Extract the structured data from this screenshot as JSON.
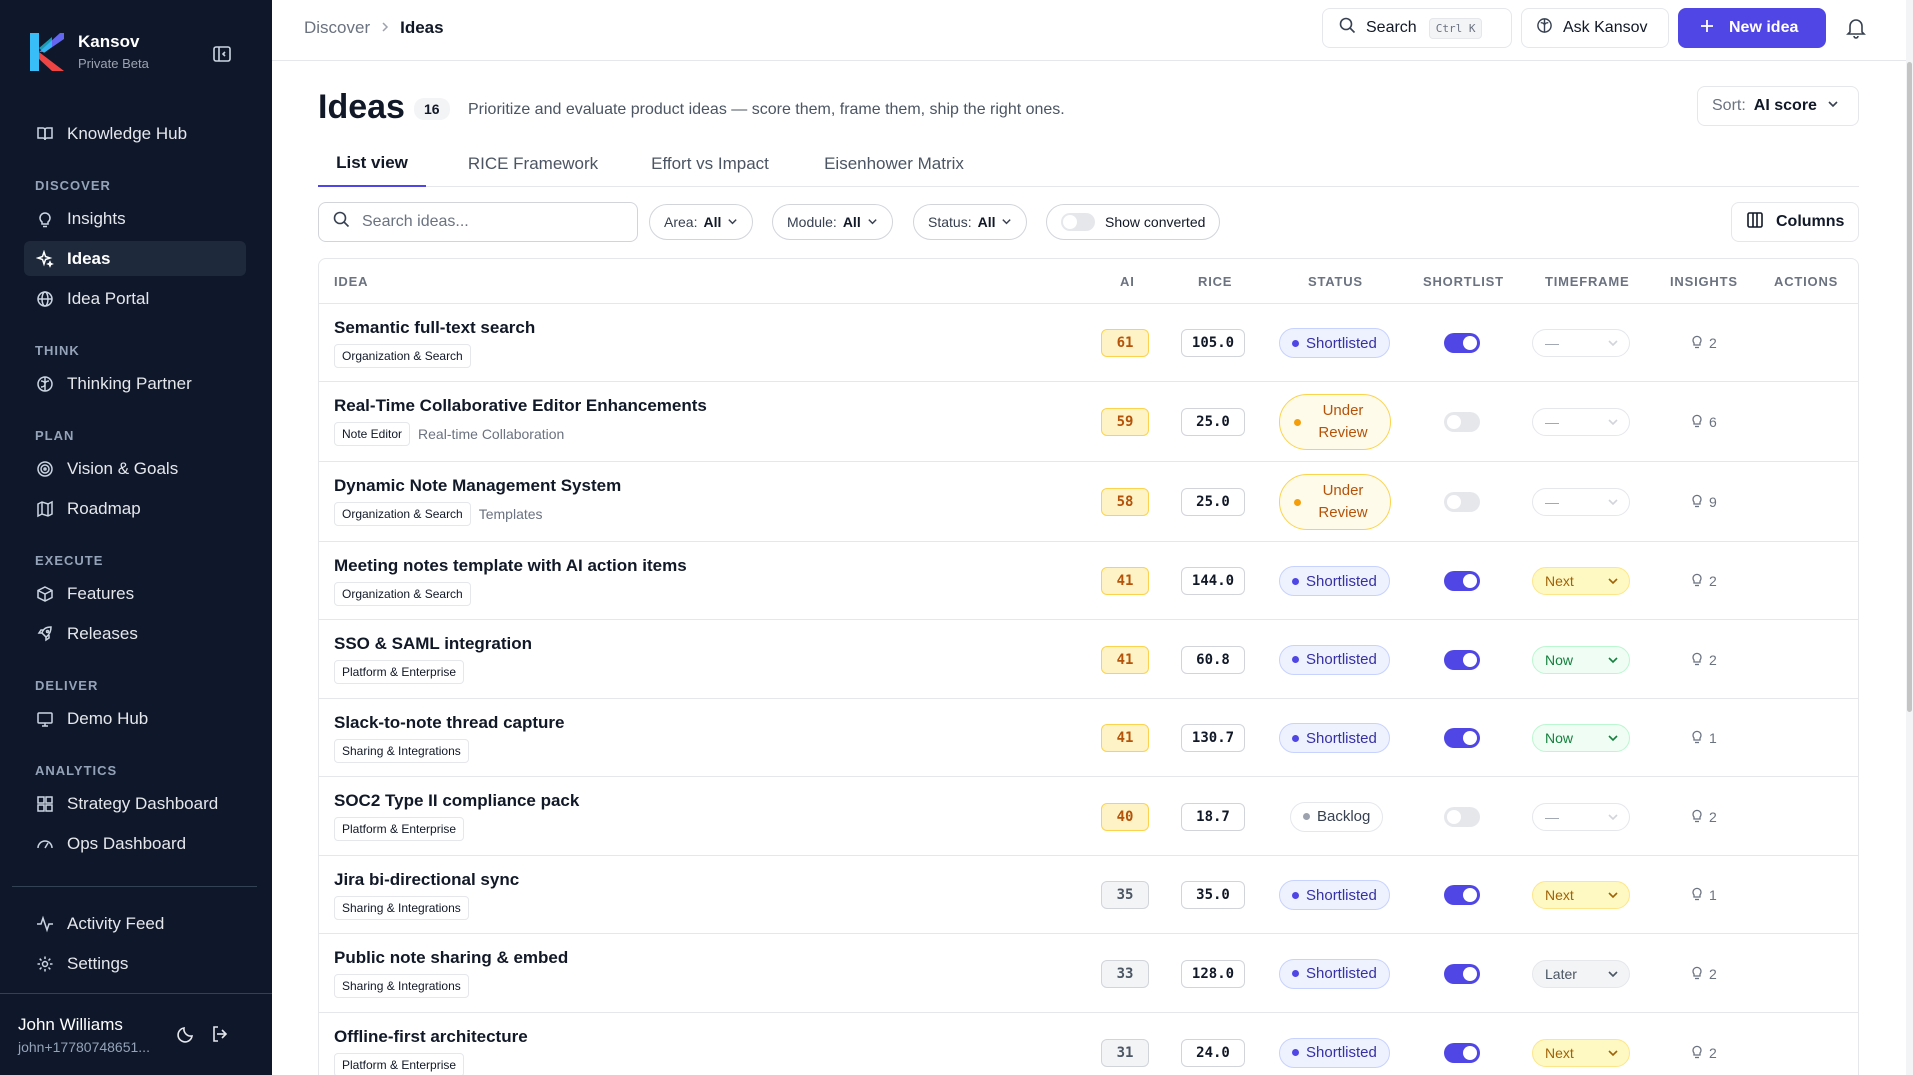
{
  "brand": {
    "name": "Kansov",
    "subtitle": "Private Beta"
  },
  "sidebar": {
    "top_item": "Knowledge Hub",
    "sections": [
      {
        "label": "DISCOVER",
        "items": [
          "Insights",
          "Ideas",
          "Idea Portal"
        ]
      },
      {
        "label": "THINK",
        "items": [
          "Thinking Partner"
        ]
      },
      {
        "label": "PLAN",
        "items": [
          "Vision & Goals",
          "Roadmap"
        ]
      },
      {
        "label": "EXECUTE",
        "items": [
          "Features",
          "Releases"
        ]
      },
      {
        "label": "DELIVER",
        "items": [
          "Demo Hub"
        ]
      },
      {
        "label": "ANALYTICS",
        "items": [
          "Strategy Dashboard",
          "Ops Dashboard"
        ]
      }
    ],
    "footer_items": [
      "Activity Feed",
      "Settings"
    ],
    "active": "Ideas"
  },
  "user": {
    "name": "John Williams",
    "email": "john+17780748651..."
  },
  "topbar": {
    "breadcrumb": [
      "Discover",
      "Ideas"
    ],
    "search_label": "Search",
    "search_kbd": "Ctrl K",
    "ask_label": "Ask Kansov",
    "new_label": "New idea"
  },
  "page": {
    "title": "Ideas",
    "count": "16",
    "description": "Prioritize and evaluate product ideas — score them, frame them, ship the right ones.",
    "sort_prefix": "Sort:",
    "sort_value": "AI score"
  },
  "tabs": [
    "List view",
    "RICE Framework",
    "Effort vs Impact",
    "Eisenhower Matrix"
  ],
  "filters": {
    "search_placeholder": "Search ideas...",
    "area": {
      "label": "Area:",
      "value": "All"
    },
    "module": {
      "label": "Module:",
      "value": "All"
    },
    "status": {
      "label": "Status:",
      "value": "All"
    },
    "converted_label": "Show converted",
    "columns_label": "Columns"
  },
  "table": {
    "headers": [
      "IDEA",
      "AI",
      "RICE",
      "STATUS",
      "SHORTLIST",
      "TIMEFRAME",
      "INSIGHTS",
      "ACTIONS"
    ],
    "rows": [
      {
        "title": "Semantic full-text search",
        "tags": [
          "Organization & Search"
        ],
        "extra": "",
        "ai": "61",
        "rice": "105.0",
        "status": "Shortlisted",
        "shortlist": true,
        "timeframe": "—",
        "insights": "2"
      },
      {
        "title": "Real-Time Collaborative Editor Enhancements",
        "tags": [
          "Note Editor"
        ],
        "extra": "Real-time Collaboration",
        "ai": "59",
        "rice": "25.0",
        "status": "Under Review",
        "shortlist": false,
        "timeframe": "—",
        "insights": "6"
      },
      {
        "title": "Dynamic Note Management System",
        "tags": [
          "Organization & Search"
        ],
        "extra": "Templates",
        "ai": "58",
        "rice": "25.0",
        "status": "Under Review",
        "shortlist": false,
        "timeframe": "—",
        "insights": "9"
      },
      {
        "title": "Meeting notes template with AI action items",
        "tags": [
          "Organization & Search"
        ],
        "extra": "",
        "ai": "41",
        "rice": "144.0",
        "status": "Shortlisted",
        "shortlist": true,
        "timeframe": "Next",
        "insights": "2"
      },
      {
        "title": "SSO & SAML integration",
        "tags": [
          "Platform & Enterprise"
        ],
        "extra": "",
        "ai": "41",
        "rice": "60.8",
        "status": "Shortlisted",
        "shortlist": true,
        "timeframe": "Now",
        "insights": "2"
      },
      {
        "title": "Slack-to-note thread capture",
        "tags": [
          "Sharing & Integrations"
        ],
        "extra": "",
        "ai": "41",
        "rice": "130.7",
        "status": "Shortlisted",
        "shortlist": true,
        "timeframe": "Now",
        "insights": "1"
      },
      {
        "title": "SOC2 Type II compliance pack",
        "tags": [
          "Platform & Enterprise"
        ],
        "extra": "",
        "ai": "40",
        "rice": "18.7",
        "status": "Backlog",
        "shortlist": false,
        "timeframe": "—",
        "insights": "2"
      },
      {
        "title": "Jira bi-directional sync",
        "tags": [
          "Sharing & Integrations"
        ],
        "extra": "",
        "ai": "35",
        "rice": "35.0",
        "status": "Shortlisted",
        "shortlist": true,
        "timeframe": "Next",
        "insights": "1"
      },
      {
        "title": "Public note sharing & embed",
        "tags": [
          "Sharing & Integrations"
        ],
        "extra": "",
        "ai": "33",
        "rice": "128.0",
        "status": "Shortlisted",
        "shortlist": true,
        "timeframe": "Later",
        "insights": "2"
      },
      {
        "title": "Offline-first architecture",
        "tags": [
          "Platform & Enterprise"
        ],
        "extra": "",
        "ai": "31",
        "rice": "24.0",
        "status": "Shortlisted",
        "shortlist": true,
        "timeframe": "Next",
        "insights": "2"
      }
    ]
  },
  "colors": {
    "sidebar_bg": "#0f172a",
    "accent": "#4f46e5",
    "ai_high": "#b45309",
    "ai_low": "#4b5563"
  }
}
